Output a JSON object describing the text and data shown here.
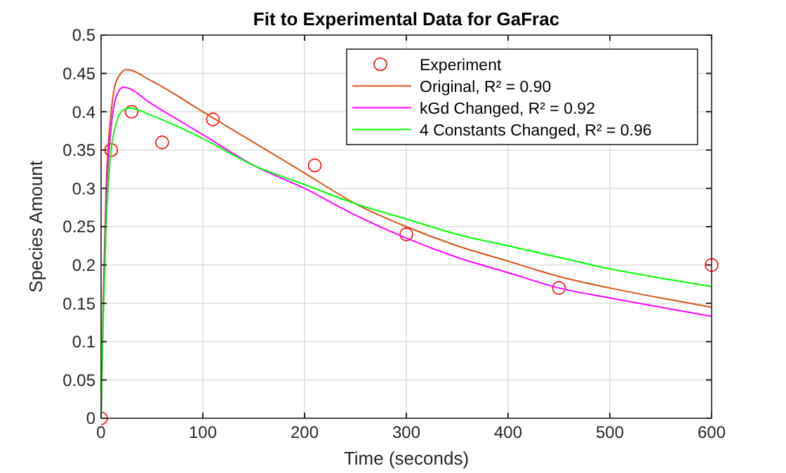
{
  "chart_data": {
    "type": "line",
    "title": "Fit to Experimental Data for GaFrac",
    "xlabel": "Time (seconds)",
    "ylabel": "Species Amount",
    "xlim": [
      0,
      600
    ],
    "xticks": [
      0,
      100,
      200,
      300,
      400,
      500,
      600
    ],
    "ylim": [
      0,
      0.5
    ],
    "yticks": [
      0,
      0.05,
      0.1,
      0.15,
      0.2,
      0.25,
      0.3,
      0.35,
      0.4,
      0.45,
      0.5
    ],
    "grid": true,
    "legend": "top right",
    "series": [
      {
        "name": "Experiment",
        "type": "scatter",
        "marker": "circle",
        "color": "#ff0000",
        "x": [
          0,
          10,
          30,
          60,
          110,
          210,
          300,
          450,
          600
        ],
        "values": [
          0,
          0.35,
          0.4,
          0.36,
          0.39,
          0.33,
          0.24,
          0.17,
          0.2
        ]
      },
      {
        "name": "Original, R² = 0.90",
        "type": "line",
        "marker": "none",
        "color": "#d95319",
        "x": [
          0,
          2,
          5,
          10,
          15,
          25,
          50,
          100,
          150,
          200,
          250,
          300,
          350,
          400,
          450,
          500,
          550,
          600
        ],
        "values": [
          0,
          0.15,
          0.3,
          0.4,
          0.44,
          0.455,
          0.44,
          0.4,
          0.36,
          0.32,
          0.28,
          0.25,
          0.225,
          0.205,
          0.185,
          0.17,
          0.157,
          0.145
        ]
      },
      {
        "name": "kGd Changed, R² = 0.92",
        "type": "line",
        "marker": "none",
        "color": "#ff00ff",
        "x": [
          0,
          2,
          5,
          10,
          15,
          22,
          50,
          100,
          150,
          200,
          250,
          300,
          350,
          400,
          450,
          500,
          550,
          600
        ],
        "values": [
          0,
          0.14,
          0.28,
          0.38,
          0.42,
          0.432,
          0.41,
          0.37,
          0.33,
          0.3,
          0.265,
          0.235,
          0.21,
          0.19,
          0.17,
          0.157,
          0.145,
          0.133
        ]
      },
      {
        "name": "4 Constants Changed, R² = 0.96",
        "type": "line",
        "marker": "none",
        "color": "#00ff00",
        "x": [
          0,
          2,
          5,
          10,
          15,
          20,
          28,
          50,
          100,
          150,
          200,
          250,
          300,
          350,
          400,
          450,
          500,
          550,
          600
        ],
        "values": [
          0,
          0.12,
          0.25,
          0.35,
          0.385,
          0.4,
          0.405,
          0.395,
          0.365,
          0.33,
          0.305,
          0.28,
          0.26,
          0.24,
          0.225,
          0.21,
          0.195,
          0.183,
          0.172
        ]
      }
    ]
  }
}
